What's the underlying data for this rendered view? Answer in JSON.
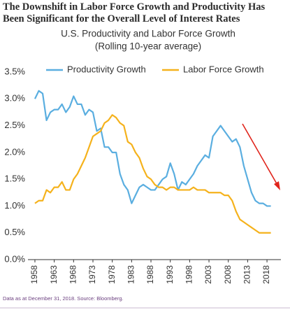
{
  "chart_data": {
    "type": "line",
    "title": "The Downshift in Labor Force Growth and Productivity Has Been Significant for the Overall Level of Interest Rates",
    "subtitle": [
      "U.S. Productivity and Labor Force Growth",
      "(Rolling 10-year average)"
    ],
    "note": "Data as at December 31, 2018. Source: Bloomberg.",
    "x": [
      1958,
      1959,
      1960,
      1961,
      1962,
      1963,
      1964,
      1965,
      1966,
      1967,
      1968,
      1969,
      1970,
      1971,
      1972,
      1973,
      1974,
      1975,
      1976,
      1977,
      1978,
      1979,
      1980,
      1981,
      1982,
      1983,
      1984,
      1985,
      1986,
      1987,
      1988,
      1989,
      1990,
      1991,
      1992,
      1993,
      1994,
      1995,
      1996,
      1997,
      1998,
      1999,
      2000,
      2001,
      2002,
      2003,
      2004,
      2005,
      2006,
      2007,
      2008,
      2009,
      2010,
      2011,
      2012,
      2013,
      2014,
      2015,
      2016,
      2017,
      2018,
      2019
    ],
    "series": [
      {
        "name": "Productivity Growth",
        "color": "#5aaee0",
        "values": [
          3.0,
          3.15,
          3.1,
          2.6,
          2.75,
          2.8,
          2.8,
          2.9,
          2.75,
          2.85,
          3.05,
          2.9,
          2.9,
          2.7,
          2.8,
          2.75,
          2.4,
          2.45,
          2.1,
          2.1,
          2.0,
          2.0,
          1.6,
          1.4,
          1.3,
          1.05,
          1.2,
          1.35,
          1.4,
          1.35,
          1.3,
          1.3,
          1.4,
          1.5,
          1.55,
          1.8,
          1.6,
          1.3,
          1.45,
          1.4,
          1.5,
          1.6,
          1.75,
          1.85,
          1.95,
          1.9,
          2.3,
          2.4,
          2.5,
          2.4,
          2.3,
          2.2,
          2.25,
          2.1,
          1.75,
          1.5,
          1.25,
          1.1,
          1.05,
          1.05,
          1.0,
          1.0
        ]
      },
      {
        "name": "Labor Force Growth",
        "color": "#f5b21c",
        "values": [
          1.05,
          1.1,
          1.1,
          1.3,
          1.25,
          1.35,
          1.35,
          1.45,
          1.3,
          1.3,
          1.5,
          1.6,
          1.75,
          1.9,
          2.1,
          2.3,
          2.35,
          2.4,
          2.55,
          2.6,
          2.7,
          2.65,
          2.55,
          2.5,
          2.2,
          2.15,
          2.0,
          1.9,
          1.7,
          1.55,
          1.5,
          1.4,
          1.35,
          1.35,
          1.3,
          1.35,
          1.35,
          1.3,
          1.3,
          1.3,
          1.3,
          1.35,
          1.3,
          1.3,
          1.3,
          1.25,
          1.25,
          1.25,
          1.25,
          1.2,
          1.2,
          1.1,
          0.9,
          0.75,
          0.7,
          0.65,
          0.6,
          0.55,
          0.5,
          0.5,
          0.5,
          0.5
        ]
      }
    ],
    "xlim": [
      1956.2,
      2021.6
    ],
    "xticks": [
      1958,
      1963,
      1968,
      1973,
      1978,
      1983,
      1988,
      1993,
      1998,
      2003,
      2008,
      2013,
      2018
    ],
    "ylim": [
      0,
      3.5
    ],
    "yticks": [
      {
        "value": 0,
        "label": "0.0%"
      },
      {
        "value": 0.5,
        "label": "0.5%"
      },
      {
        "value": 1,
        "label": "1.0%"
      },
      {
        "value": 1.5,
        "label": "1.5%"
      },
      {
        "value": 2,
        "label": "2.0%"
      },
      {
        "value": 2.5,
        "label": "2.5%"
      },
      {
        "value": 3,
        "label": "3.0%"
      },
      {
        "value": 3.5,
        "label": "3.5%"
      }
    ],
    "grid": false,
    "legend": "top"
  }
}
